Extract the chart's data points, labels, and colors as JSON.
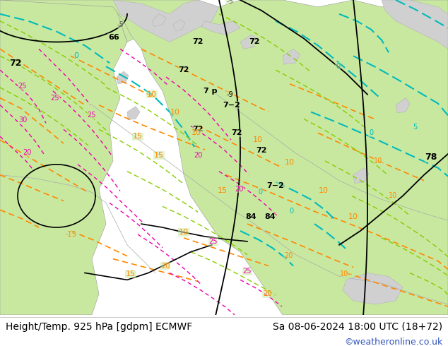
{
  "title_left": "Height/Temp. 925 hPa [gdpm] ECMWF",
  "title_right": "Sa 08-06-2024 18:00 UTC (18+72)",
  "copyright": "©weatheronline.co.uk",
  "bg_color": "#ffffff",
  "land_color": "#c8e8a0",
  "sea_color": "#d0d0d0",
  "left_text_color": "#000000",
  "right_text_color": "#000000",
  "copyright_color": "#3355bb",
  "font_size_title": 10,
  "font_size_copyright": 9,
  "fig_width": 6.34,
  "fig_height": 4.9,
  "dpi": 100
}
